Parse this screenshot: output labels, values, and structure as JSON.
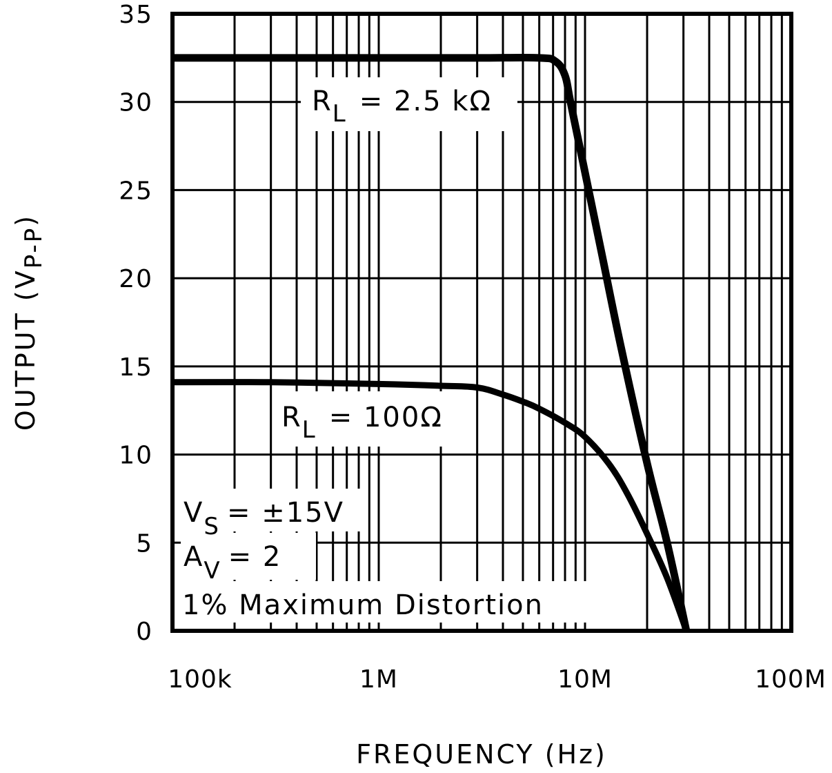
{
  "chart_data": {
    "type": "line",
    "title": "",
    "xlabel": "FREQUENCY (Hz)",
    "ylabel": "OUTPUT (V P-P)",
    "ylabel_main": "OUTPUT (V",
    "ylabel_sub": "P-P",
    "ylabel_close": ")",
    "xscale": "log",
    "xlim": [
      100000,
      100000000
    ],
    "ylim": [
      0,
      35
    ],
    "grid": true,
    "x_ticks": [
      100000,
      1000000,
      10000000,
      100000000
    ],
    "x_tick_labels": [
      "100k",
      "1M",
      "10M",
      "100M"
    ],
    "y_ticks": [
      0,
      5,
      10,
      15,
      20,
      25,
      30,
      35
    ],
    "y_tick_labels": [
      "0",
      "5",
      "10",
      "15",
      "20",
      "25",
      "30",
      "35"
    ],
    "series": [
      {
        "name": "RL = 2.5 kΩ",
        "label_main": "R",
        "label_sub": "L",
        "label_rest": "= 2.5 kΩ",
        "x": [
          100000,
          1000000,
          3000000,
          6000000,
          7200000,
          8000000,
          8500000,
          10000000,
          12000000,
          15000000,
          20000000,
          25000000,
          31000000
        ],
        "y": [
          32.5,
          32.5,
          32.5,
          32.5,
          32.3,
          31.5,
          30.0,
          26.0,
          21.5,
          16.0,
          9.5,
          5.0,
          0
        ]
      },
      {
        "name": "RL = 100Ω",
        "label_main": "R",
        "label_sub": "L",
        "label_rest": "= 100Ω",
        "x": [
          100000,
          300000,
          1000000,
          2000000,
          3000000,
          4000000,
          5000000,
          6000000,
          8000000,
          10000000,
          13000000,
          16000000,
          20000000,
          25000000,
          31000000
        ],
        "y": [
          14.1,
          14.1,
          14.0,
          13.9,
          13.8,
          13.4,
          13.0,
          12.6,
          11.8,
          11.0,
          9.5,
          7.8,
          5.5,
          3.0,
          0
        ]
      }
    ],
    "annotations": [
      {
        "main": "V",
        "sub": "S",
        "rest": "= ±15V"
      },
      {
        "main": "A",
        "sub": "V",
        "rest": "= 2"
      },
      {
        "main": "1% Maximum Distortion",
        "sub": "",
        "rest": ""
      }
    ]
  }
}
